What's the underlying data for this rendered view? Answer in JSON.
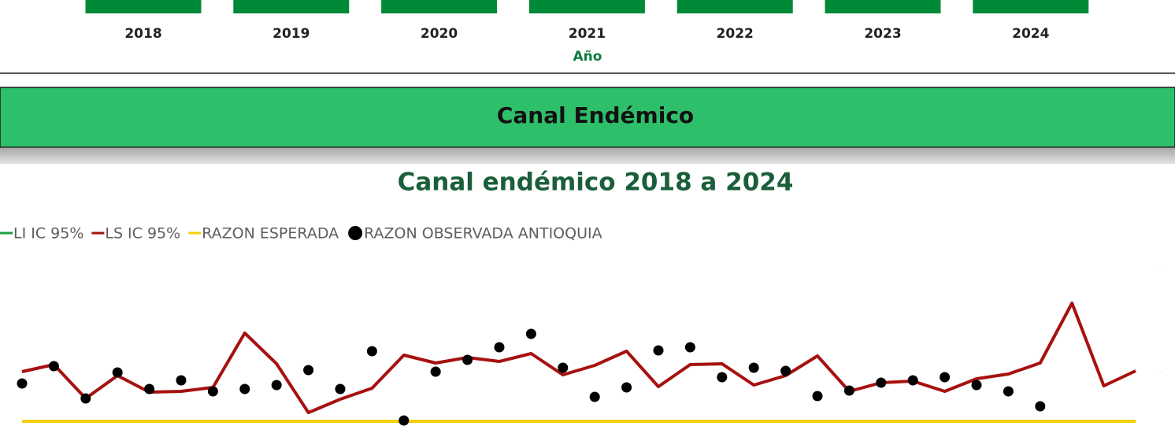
{
  "years": [
    "2018",
    "2019",
    "2020",
    "2021",
    "2022",
    "2023",
    "2024"
  ],
  "year_axis_label": "Año",
  "section_title": "Canal Endémico",
  "chart_data": {
    "type": "line",
    "title": "Canal endémico 2018 a 2024",
    "categories": [
      null,
      null,
      null,
      null,
      null,
      null,
      null,
      null,
      null,
      null,
      null,
      null,
      null,
      null,
      null,
      null,
      null,
      null,
      null,
      null,
      null,
      null,
      null,
      null,
      null,
      null,
      null,
      null,
      null,
      null,
      null,
      null,
      null,
      null,
      null,
      null
    ],
    "ylim": [
      0,
      200
    ],
    "legend": "top-left",
    "series": [
      {
        "name": "LI IC 95%",
        "color": "#1a9e3f",
        "mark": "line",
        "values": [
          null,
          null,
          null,
          null,
          null,
          null,
          null,
          null,
          null,
          null,
          null,
          null,
          null,
          null,
          null,
          null,
          null,
          null,
          null,
          null,
          null,
          null,
          null,
          null,
          null,
          null,
          null,
          null,
          null,
          null,
          null,
          null,
          null,
          null,
          null,
          null
        ]
      },
      {
        "name": "LS IC 95%",
        "color": "#a6110f",
        "mark": "line",
        "values": [
          68,
          77,
          34,
          63,
          42,
          43,
          48,
          117,
          78,
          16,
          33,
          47,
          89,
          79,
          86,
          81,
          91,
          64,
          76,
          94,
          49,
          77,
          78,
          51,
          63,
          88,
          43,
          54,
          56,
          43,
          59,
          65,
          79,
          155,
          50,
          69
        ]
      },
      {
        "name": "RAZON ESPERADA",
        "color": "#f5d000",
        "mark": "line",
        "values": [
          5,
          5,
          5,
          5,
          5,
          5,
          5,
          5,
          5,
          5,
          5,
          5,
          5,
          5,
          5,
          5,
          5,
          5,
          5,
          5,
          5,
          5,
          5,
          5,
          5,
          5,
          5,
          5,
          5,
          5,
          5,
          5,
          5,
          5,
          5,
          5
        ]
      },
      {
        "name": "RAZON OBSERVADA ANTIOQUIA",
        "color": "#000000",
        "mark": "dot",
        "values": [
          53,
          75,
          34,
          67,
          46,
          57,
          43,
          46,
          51,
          70,
          46,
          94,
          6,
          68,
          83,
          99,
          116,
          73,
          36,
          48,
          95,
          99,
          61,
          73,
          69,
          37,
          44,
          54,
          57,
          61,
          51,
          43,
          24,
          null,
          null,
          null
        ]
      }
    ]
  }
}
